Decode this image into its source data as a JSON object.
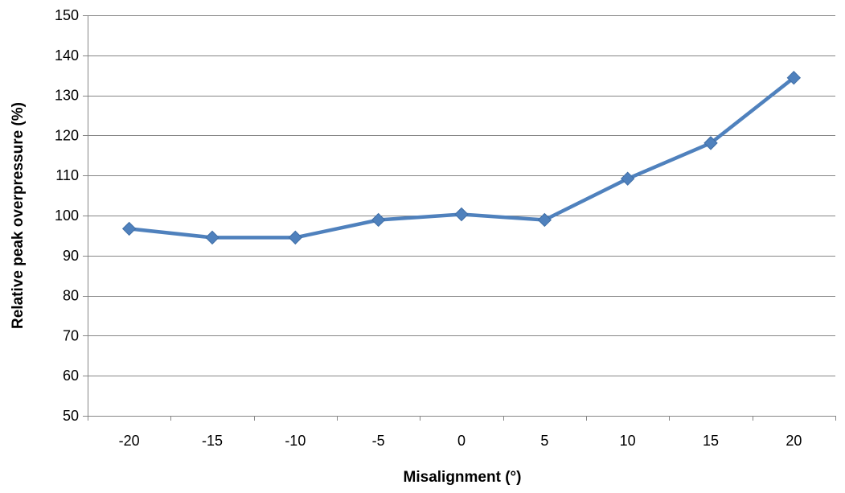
{
  "chart_data": {
    "type": "line",
    "title": "",
    "xlabel": "Misalignment (°)",
    "ylabel": "Relative peak overpressure (%)",
    "categories": [
      "-20",
      "-15",
      "-10",
      "-5",
      "0",
      "5",
      "10",
      "15",
      "20"
    ],
    "series": [
      {
        "values": [
          96.7,
          94.5,
          94.5,
          98.9,
          100.3,
          98.9,
          109.2,
          118.1,
          134.4
        ]
      }
    ],
    "ylim": [
      50,
      150
    ],
    "yticks": [
      50,
      60,
      70,
      80,
      90,
      100,
      110,
      120,
      130,
      140,
      150
    ],
    "grid": "horizontal",
    "legend": "none",
    "colors": {
      "series": "#4f81bd",
      "grid": "#868686",
      "axis": "#868686"
    },
    "marker": "diamond"
  }
}
